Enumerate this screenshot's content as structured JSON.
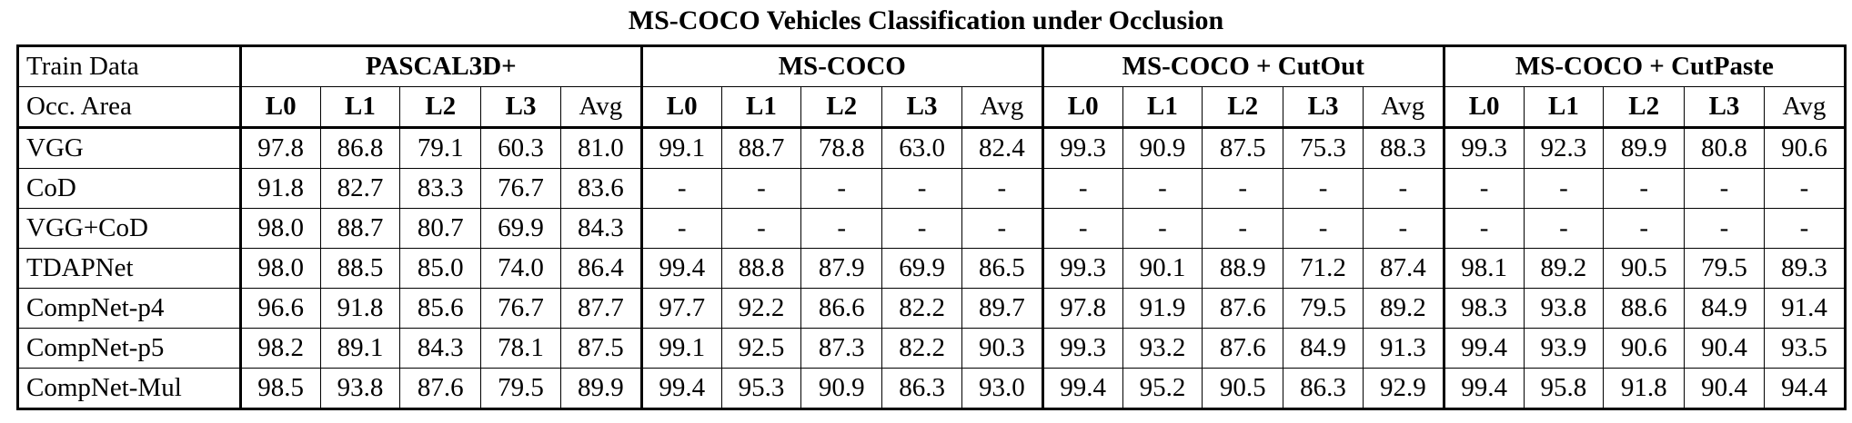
{
  "caption": "MS-COCO Vehicles Classification under Occlusion",
  "header": {
    "train_data_label": "Train Data",
    "occ_area_label": "Occ. Area",
    "groups": [
      "PASCAL3D+",
      "MS-COCO",
      "MS-COCO + CutOut",
      "MS-COCO + CutPaste"
    ],
    "levels": [
      "L0",
      "L1",
      "L2",
      "L3",
      "Avg"
    ]
  },
  "rows": [
    {
      "method": "VGG",
      "cells": [
        [
          "97.8",
          "86.8",
          "79.1",
          "60.3",
          "81.0"
        ],
        [
          "99.1",
          "88.7",
          "78.8",
          "63.0",
          "82.4"
        ],
        [
          "99.3",
          "90.9",
          "87.5",
          "75.3",
          "88.3"
        ],
        [
          "99.3",
          "92.3",
          "89.9",
          "80.8",
          "90.6"
        ]
      ],
      "bold": [
        [],
        [],
        [],
        []
      ]
    },
    {
      "method": "CoD",
      "cells": [
        [
          "91.8",
          "82.7",
          "83.3",
          "76.7",
          "83.6"
        ],
        [
          "-",
          "-",
          "-",
          "-",
          "-"
        ],
        [
          "-",
          "-",
          "-",
          "-",
          "-"
        ],
        [
          "-",
          "-",
          "-",
          "-",
          "-"
        ]
      ],
      "bold": [
        [],
        [],
        [],
        []
      ]
    },
    {
      "method": "VGG+CoD",
      "cells": [
        [
          "98.0",
          "88.7",
          "80.7",
          "69.9",
          "84.3"
        ],
        [
          "-",
          "-",
          "-",
          "-",
          "-"
        ],
        [
          "-",
          "-",
          "-",
          "-",
          "-"
        ],
        [
          "-",
          "-",
          "-",
          "-",
          "-"
        ]
      ],
      "bold": [
        [],
        [],
        [],
        []
      ]
    },
    {
      "method": "TDAPNet",
      "cells": [
        [
          "98.0",
          "88.5",
          "85.0",
          "74.0",
          "86.4"
        ],
        [
          "99.4",
          "88.8",
          "87.9",
          "69.9",
          "86.5"
        ],
        [
          "99.3",
          "90.1",
          "88.9",
          "71.2",
          "87.4"
        ],
        [
          "98.1",
          "89.2",
          "90.5",
          "79.5",
          "89.3"
        ]
      ],
      "bold": [
        [],
        [
          0
        ],
        [],
        []
      ]
    },
    {
      "method": "CompNet-p4",
      "cells": [
        [
          "96.6",
          "91.8",
          "85.6",
          "76.7",
          "87.7"
        ],
        [
          "97.7",
          "92.2",
          "86.6",
          "82.2",
          "89.7"
        ],
        [
          "97.8",
          "91.9",
          "87.6",
          "79.5",
          "89.2"
        ],
        [
          "98.3",
          "93.8",
          "88.6",
          "84.9",
          "91.4"
        ]
      ],
      "bold": [
        [],
        [],
        [],
        []
      ]
    },
    {
      "method": "CompNet-p5",
      "cells": [
        [
          "98.2",
          "89.1",
          "84.3",
          "78.1",
          "87.5"
        ],
        [
          "99.1",
          "92.5",
          "87.3",
          "82.2",
          "90.3"
        ],
        [
          "99.3",
          "93.2",
          "87.6",
          "84.9",
          "91.3"
        ],
        [
          "99.4",
          "93.9",
          "90.6",
          "90.4",
          "93.5"
        ]
      ],
      "bold": [
        [],
        [],
        [],
        [
          0,
          3
        ]
      ]
    },
    {
      "method": "CompNet-Mul",
      "cells": [
        [
          "98.5",
          "93.8",
          "87.6",
          "79.5",
          "89.9"
        ],
        [
          "99.4",
          "95.3",
          "90.9",
          "86.3",
          "93.0"
        ],
        [
          "99.4",
          "95.2",
          "90.5",
          "86.3",
          "92.9"
        ],
        [
          "99.4",
          "95.8",
          "91.8",
          "90.4",
          "94.4"
        ]
      ],
      "bold": [
        [
          0,
          1,
          2,
          3,
          4
        ],
        [
          0,
          1,
          2,
          3,
          4
        ],
        [
          0,
          1,
          2,
          3,
          4
        ],
        [
          0,
          1,
          2,
          3,
          4
        ]
      ]
    }
  ]
}
